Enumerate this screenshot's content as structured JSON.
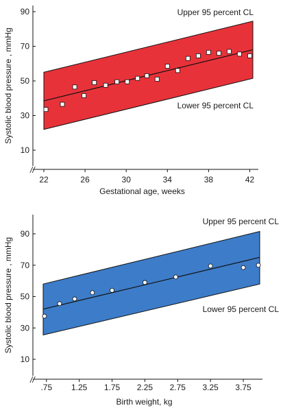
{
  "chart_data": [
    {
      "type": "scatter",
      "xlabel": "Gestational age, weeks",
      "ylabel": "Systolic blood pressure , mmHg",
      "xlim": [
        22,
        42.3
      ],
      "ylim": [
        10,
        93
      ],
      "x_ticks": [
        22,
        26,
        30,
        34,
        38,
        42
      ],
      "y_ticks": [
        10,
        30,
        50,
        70,
        90
      ],
      "axis_break": "//",
      "band_color": "#e8323a",
      "regression_line": {
        "x": [
          22,
          42.3
        ],
        "y": [
          38.5,
          68
        ]
      },
      "upper_cl": {
        "label": "Upper 95 percent CL",
        "x": [
          22,
          42.3
        ],
        "y": [
          55,
          84.5
        ]
      },
      "lower_cl": {
        "label": "Lower 95 percent CL",
        "x": [
          22,
          42.3
        ],
        "y": [
          22,
          51.5
        ]
      },
      "series": [
        {
          "x": [
            22.2,
            23.8,
            25,
            25.9,
            26.9,
            28,
            29.1,
            30.1,
            31.1,
            32,
            33,
            34,
            35,
            36,
            37,
            38,
            39,
            40,
            41,
            42
          ],
          "y": [
            33.5,
            36.5,
            46.5,
            41.5,
            49,
            47.5,
            49.5,
            49.5,
            51.5,
            53,
            51,
            58.5,
            56,
            63,
            64.5,
            66.5,
            66,
            67,
            65.5,
            64.5
          ]
        }
      ]
    },
    {
      "type": "scatter",
      "xlabel": "Birth weight, kg",
      "ylabel": "Systolic blood pressure , mmHg",
      "xlim": [
        0.7,
        4
      ],
      "ylim": [
        8,
        97
      ],
      "x_ticks": [
        ".75",
        "1.25",
        "1.75",
        "2.25",
        "2.75",
        "3.25",
        "3.75"
      ],
      "y_ticks": [
        10,
        30,
        50,
        70,
        90
      ],
      "axis_break": "//",
      "band_color": "#3d7cc8",
      "regression_line": {
        "x": [
          0.7,
          4
        ],
        "y": [
          42,
          75
        ]
      },
      "upper_cl": {
        "label": "Upper 95 percent CL",
        "x": [
          0.7,
          4
        ],
        "y": [
          58,
          91.5
        ]
      },
      "lower_cl": {
        "label": "Lower 95 percent CL",
        "x": [
          0.7,
          4
        ],
        "y": [
          25.5,
          58
        ]
      },
      "series": [
        {
          "x": [
            0.72,
            0.95,
            1.18,
            1.45,
            1.75,
            2.25,
            2.72,
            3.25,
            3.75,
            3.98
          ],
          "y": [
            37.5,
            45.5,
            48.5,
            52.5,
            54,
            59,
            62.5,
            69.5,
            68.5,
            70
          ]
        }
      ]
    }
  ]
}
